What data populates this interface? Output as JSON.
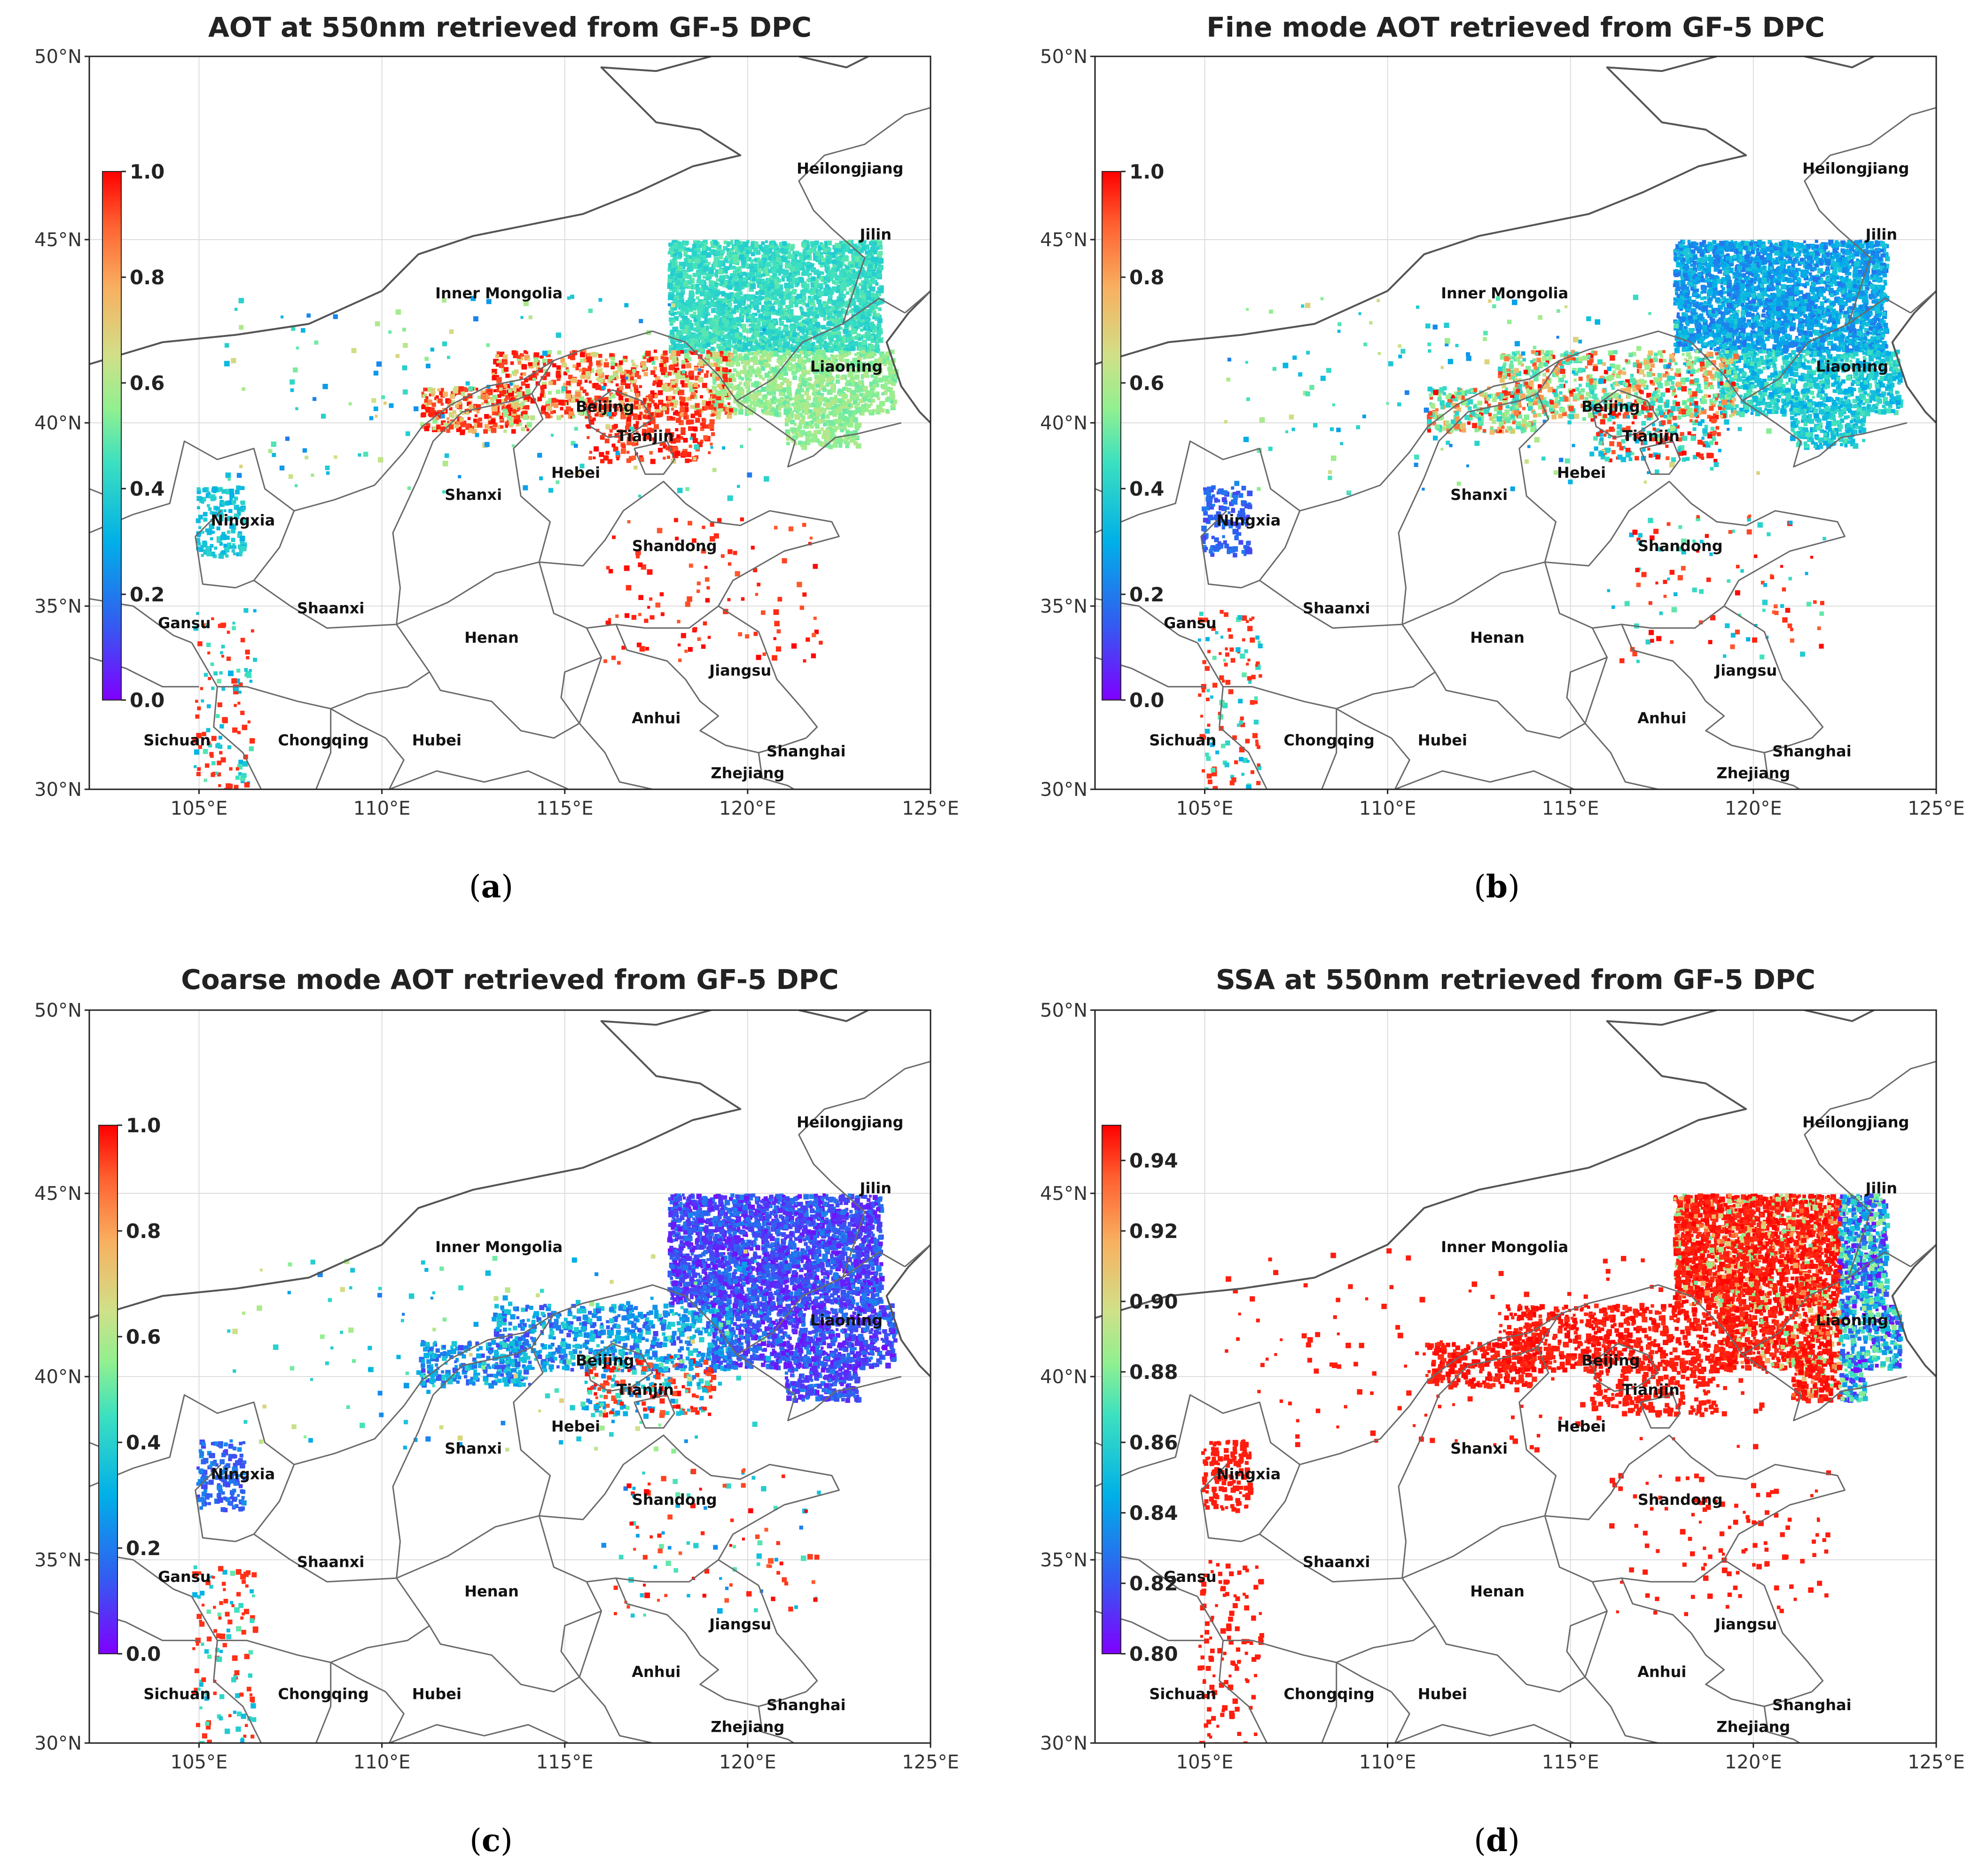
{
  "figure": {
    "panels": [
      {
        "id": "a",
        "title": "AOT at 550nm retrieved from GF-5 DPC",
        "caption_letter": "a",
        "colorbar": {
          "min": 0.0,
          "max": 1.0,
          "ticks": [
            "1.0",
            "0.8",
            "0.6",
            "0.4",
            "0.2",
            "0.0"
          ]
        },
        "theme": "aot"
      },
      {
        "id": "b",
        "title": "Fine mode AOT retrieved from GF-5 DPC",
        "caption_letter": "b",
        "colorbar": {
          "min": 0.0,
          "max": 1.0,
          "ticks": [
            "1.0",
            "0.8",
            "0.6",
            "0.4",
            "0.2",
            "0.0"
          ]
        },
        "theme": "fine"
      },
      {
        "id": "c",
        "title": "Coarse mode AOT retrieved from GF-5 DPC",
        "caption_letter": "c",
        "colorbar": {
          "min": 0.0,
          "max": 1.0,
          "ticks": [
            "1.0",
            "0.8",
            "0.6",
            "0.4",
            "0.2",
            "0.0"
          ]
        },
        "theme": "coarse"
      },
      {
        "id": "d",
        "title": "SSA at 550nm retrieved from GF-5 DPC",
        "caption_letter": "d",
        "colorbar": {
          "min": 0.8,
          "max": 0.95,
          "ticks": [
            "0.94",
            "0.92",
            "0.90",
            "0.88",
            "0.86",
            "0.84",
            "0.82",
            "0.80"
          ]
        },
        "theme": "ssa"
      }
    ],
    "lat_ticks": [
      "50°N",
      "45°N",
      "40°N",
      "35°N",
      "30°N"
    ],
    "lon_ticks": [
      "105°E",
      "110°E",
      "115°E",
      "120°E",
      "125°E"
    ],
    "provinces": [
      "Heilongjiang",
      "Jilin",
      "Inner Mongolia",
      "Liaoning",
      "Beijing",
      "Tianjin",
      "Hebei",
      "Shanxi",
      "Ningxia",
      "Shandong",
      "Gansu",
      "Shaanxi",
      "Henan",
      "Jiangsu",
      "Anhui",
      "Sichuan",
      "Chongqing",
      "Hubei",
      "Shanghai",
      "Zhejiang"
    ],
    "colors": {
      "red": "#ff0000",
      "purple": "#7f00ff"
    }
  }
}
